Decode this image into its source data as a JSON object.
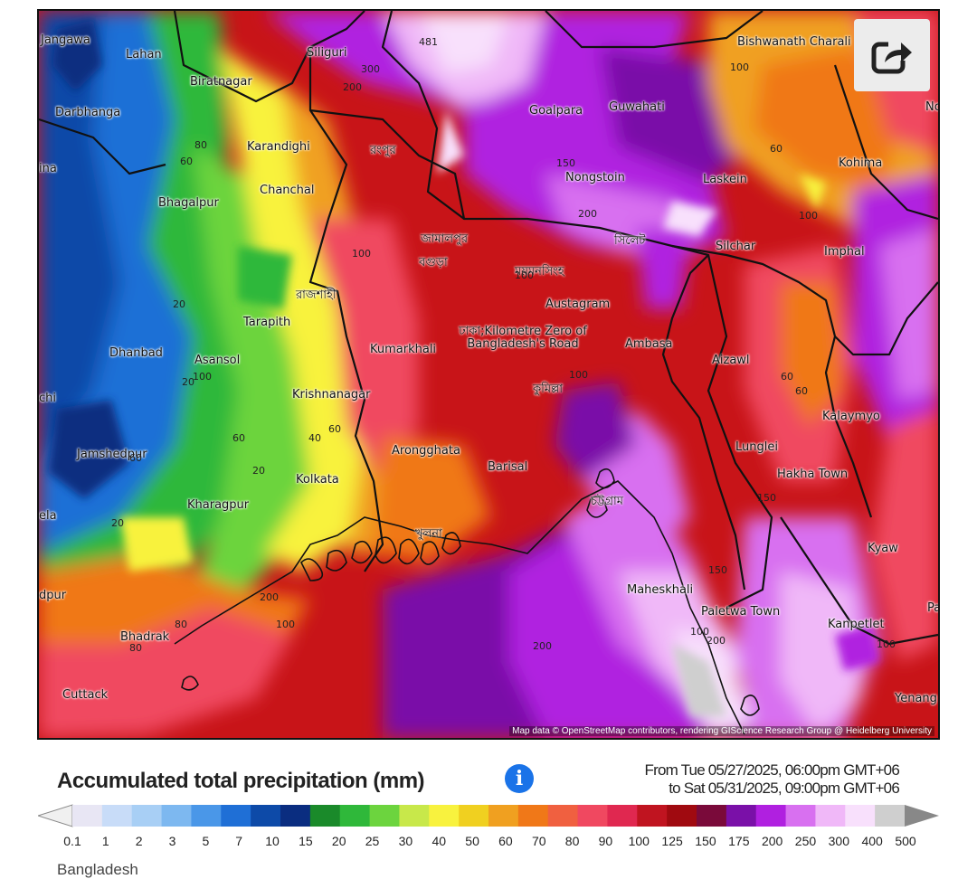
{
  "map": {
    "cities": [
      {
        "name": "Jangawa"
      },
      {
        "name": "Lahan"
      },
      {
        "name": "Siliguri"
      },
      {
        "name": "Biratnagar"
      },
      {
        "name": "Darbhanga"
      },
      {
        "name": "Goalpara"
      },
      {
        "name": "Guwahati"
      },
      {
        "name": "Bishwanath Charali"
      },
      {
        "name": "Karandighi"
      },
      {
        "name": "রংপুর"
      },
      {
        "name": "Chanchal"
      },
      {
        "name": "Nongstoin"
      },
      {
        "name": "Laskein"
      },
      {
        "name": "Kohima"
      },
      {
        "name": "Bhagalpur"
      },
      {
        "name": "জামালপুর"
      },
      {
        "name": "বগুড়া"
      },
      {
        "name": "সিলেট"
      },
      {
        "name": "Silchar"
      },
      {
        "name": "Imphal"
      },
      {
        "name": "ময়মনসিংহ"
      },
      {
        "name": "রাজশাহী"
      },
      {
        "name": "Austagram"
      },
      {
        "name": "Tarapith"
      },
      {
        "name": "Dhanbad"
      },
      {
        "name": "Asansol"
      },
      {
        "name": "Kumarkhali"
      },
      {
        "name": "ঢাকা;Kilometre Zero of Bangladesh's Road"
      },
      {
        "name": "Ambasa"
      },
      {
        "name": "Aizawl"
      },
      {
        "name": "Krishnanagar"
      },
      {
        "name": "কুমিল্লা"
      },
      {
        "name": "Kalaymyo"
      },
      {
        "name": "Jamshedpur"
      },
      {
        "name": "Arongghata"
      },
      {
        "name": "Lunglei"
      },
      {
        "name": "Kolkata"
      },
      {
        "name": "Barisal"
      },
      {
        "name": "Hakha Town"
      },
      {
        "name": "Kharagpur"
      },
      {
        "name": "চট্টগ্রাম"
      },
      {
        "name": "খুলনা"
      },
      {
        "name": "Kyaw"
      },
      {
        "name": "Maheskhali"
      },
      {
        "name": "Paletwa Town"
      },
      {
        "name": "Kanpetlet"
      },
      {
        "name": "Bhadrak"
      },
      {
        "name": "Cuttack"
      },
      {
        "name": "Yenang"
      },
      {
        "name": "Nc"
      },
      {
        "name": "ina"
      },
      {
        "name": "chi"
      },
      {
        "name": "ela"
      },
      {
        "name": "dpur"
      },
      {
        "name": "Pa"
      }
    ],
    "contour_labels": [
      "300",
      "200",
      "481",
      "100",
      "80",
      "60",
      "150",
      "200",
      "100",
      "100",
      "60",
      "20",
      "20",
      "100",
      "60",
      "40",
      "60",
      "20",
      "20",
      "100",
      "150",
      "60",
      "200",
      "100",
      "150",
      "60",
      "80",
      "100",
      "200",
      "100",
      "80",
      "60",
      "100",
      "200"
    ],
    "attribution": "Map data © OpenStreetMap contributors, rendering GIScience Research Group @ Heidelberg University"
  },
  "share_button": {
    "icon": "share-icon"
  },
  "legend": {
    "title": "Accumulated total precipitation (mm)",
    "info_icon": "i",
    "range_from": "From Tue 05/27/2025, 06:00pm GMT+06",
    "range_to": "to Sat 05/31/2025, 09:00pm GMT+06",
    "ticks": [
      "0.1",
      "1",
      "2",
      "3",
      "5",
      "7",
      "10",
      "15",
      "20",
      "25",
      "30",
      "40",
      "50",
      "60",
      "70",
      "80",
      "90",
      "100",
      "125",
      "150",
      "175",
      "200",
      "250",
      "300",
      "400",
      "500"
    ],
    "colors": [
      "#e8e6f4",
      "#c8dcf8",
      "#a8cff5",
      "#7db8f0",
      "#4a97e8",
      "#1f6fd6",
      "#0d4aa8",
      "#0a2d80",
      "#1a8a2a",
      "#2fb83a",
      "#6cd43e",
      "#c8e84a",
      "#f8f23e",
      "#f0d020",
      "#f0a020",
      "#f07818",
      "#f06040",
      "#f04860",
      "#e02850",
      "#c01420",
      "#a00a10",
      "#7a0a3a",
      "#7a10a8",
      "#b020e0",
      "#d870f0",
      "#f0b8f8",
      "#f8e0fc",
      "#cfcfcf"
    ]
  },
  "country": "Bangladesh"
}
